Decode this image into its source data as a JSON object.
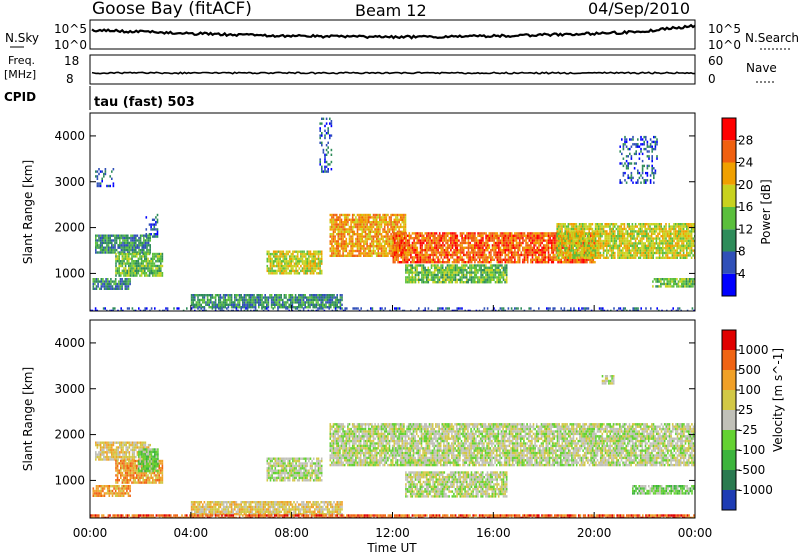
{
  "header": {
    "station": "Goose Bay (fitACF)",
    "beam": "Beam 12",
    "date": "04/Sep/2010"
  },
  "top_panels": {
    "nsky_label": "N.Sky",
    "nsearch_label": "N.Search",
    "freq_label_1": "Freq.",
    "freq_label_2": "[MHz]",
    "nave_label": "Nave",
    "cpid_label": "CPID",
    "cpid_text": "tau (fast) 503",
    "noise_ticks_left": [
      "10^5",
      "10^0"
    ],
    "noise_ticks_right": [
      "10^5",
      "10^0"
    ],
    "freq_ticks": [
      "18",
      "8"
    ],
    "nave_ticks": [
      "60",
      "0"
    ]
  },
  "chart_data": [
    {
      "type": "heatmap",
      "panel": "power",
      "ylabel": "Slant Range [km]",
      "xlabel": "",
      "ylim": [
        180,
        4500
      ],
      "xlim": [
        0,
        24
      ],
      "yticks": [
        "1000",
        "2000",
        "3000",
        "4000"
      ],
      "colorbar": {
        "label": "Power [dB]",
        "ticks": [
          "4",
          "8",
          "12",
          "16",
          "20",
          "24",
          "28"
        ],
        "colors": [
          "#0000ff",
          "#3050b8",
          "#2e8c5a",
          "#5abf3c",
          "#c8d21e",
          "#f0a000",
          "#f06010",
          "#ff0000"
        ]
      },
      "regions": [
        {
          "x": [
            0.2,
            2.4
          ],
          "y": [
            1450,
            1850
          ],
          "level": 2
        },
        {
          "x": [
            1.0,
            2.9
          ],
          "y": [
            950,
            1450
          ],
          "level": 3
        },
        {
          "x": [
            0.1,
            1.6
          ],
          "y": [
            650,
            900
          ],
          "level": 2
        },
        {
          "x": [
            0.2,
            0.9
          ],
          "y": [
            2900,
            3300
          ],
          "level": 1
        },
        {
          "x": [
            2.2,
            2.7
          ],
          "y": [
            1800,
            2300
          ],
          "level": 1
        },
        {
          "x": [
            7.0,
            9.2
          ],
          "y": [
            1000,
            1500
          ],
          "level": 4
        },
        {
          "x": [
            9.5,
            12.5
          ],
          "y": [
            1400,
            2300
          ],
          "level": 5
        },
        {
          "x": [
            12.0,
            20.0
          ],
          "y": [
            1250,
            1900
          ],
          "level": 6
        },
        {
          "x": [
            18.5,
            24.0
          ],
          "y": [
            1350,
            2100
          ],
          "level": 4
        },
        {
          "x": [
            12.5,
            16.5
          ],
          "y": [
            800,
            1200
          ],
          "level": 3
        },
        {
          "x": [
            4.0,
            10.0
          ],
          "y": [
            250,
            550
          ],
          "level": 2
        },
        {
          "x": [
            0.0,
            24.0
          ],
          "y": [
            180,
            260
          ],
          "level": 1
        },
        {
          "x": [
            22.3,
            24.0
          ],
          "y": [
            700,
            900
          ],
          "level": 3
        },
        {
          "x": [
            21.0,
            22.5
          ],
          "y": [
            3000,
            4000
          ],
          "level": 1
        },
        {
          "x": [
            9.1,
            9.6
          ],
          "y": [
            3200,
            4400
          ],
          "level": 1
        }
      ]
    },
    {
      "type": "heatmap",
      "panel": "velocity",
      "ylabel": "Slant Range [km]",
      "xlabel": "Time UT",
      "ylim": [
        180,
        4500
      ],
      "xlim": [
        0,
        24
      ],
      "xticks": [
        "00:00",
        "04:00",
        "08:00",
        "12:00",
        "16:00",
        "20:00",
        "00:00"
      ],
      "yticks": [
        "1000",
        "2000",
        "3000",
        "4000"
      ],
      "colorbar": {
        "label": "Velocity [m s^-1]",
        "ticks": [
          "1000",
          "500",
          "100",
          "25",
          "-25",
          "-100",
          "-500",
          "-1000"
        ],
        "colors": [
          "#1e3cb4",
          "#2a7a50",
          "#3cb43c",
          "#64d232",
          "#c0c0b8",
          "#d2c846",
          "#f0a028",
          "#f06414",
          "#e00000"
        ]
      },
      "regions": [
        {
          "x": [
            0.2,
            2.4
          ],
          "y": [
            1450,
            1850
          ],
          "level": 5
        },
        {
          "x": [
            1.0,
            2.9
          ],
          "y": [
            950,
            1450
          ],
          "level": 6
        },
        {
          "x": [
            1.9,
            2.7
          ],
          "y": [
            1200,
            1700
          ],
          "level": 3
        },
        {
          "x": [
            0.1,
            1.6
          ],
          "y": [
            650,
            900
          ],
          "level": 6
        },
        {
          "x": [
            7.0,
            9.2
          ],
          "y": [
            1000,
            1500
          ],
          "level": 4
        },
        {
          "x": [
            9.5,
            24.0
          ],
          "y": [
            1350,
            2250
          ],
          "level": 4
        },
        {
          "x": [
            12.5,
            16.5
          ],
          "y": [
            650,
            1200
          ],
          "level": 4
        },
        {
          "x": [
            4.0,
            10.0
          ],
          "y": [
            250,
            550
          ],
          "level": 5
        },
        {
          "x": [
            0.0,
            24.0
          ],
          "y": [
            180,
            260
          ],
          "level": 7
        },
        {
          "x": [
            21.5,
            24.0
          ],
          "y": [
            700,
            900
          ],
          "level": 3
        },
        {
          "x": [
            20.3,
            20.8
          ],
          "y": [
            3100,
            3300
          ],
          "level": 4
        }
      ]
    }
  ]
}
